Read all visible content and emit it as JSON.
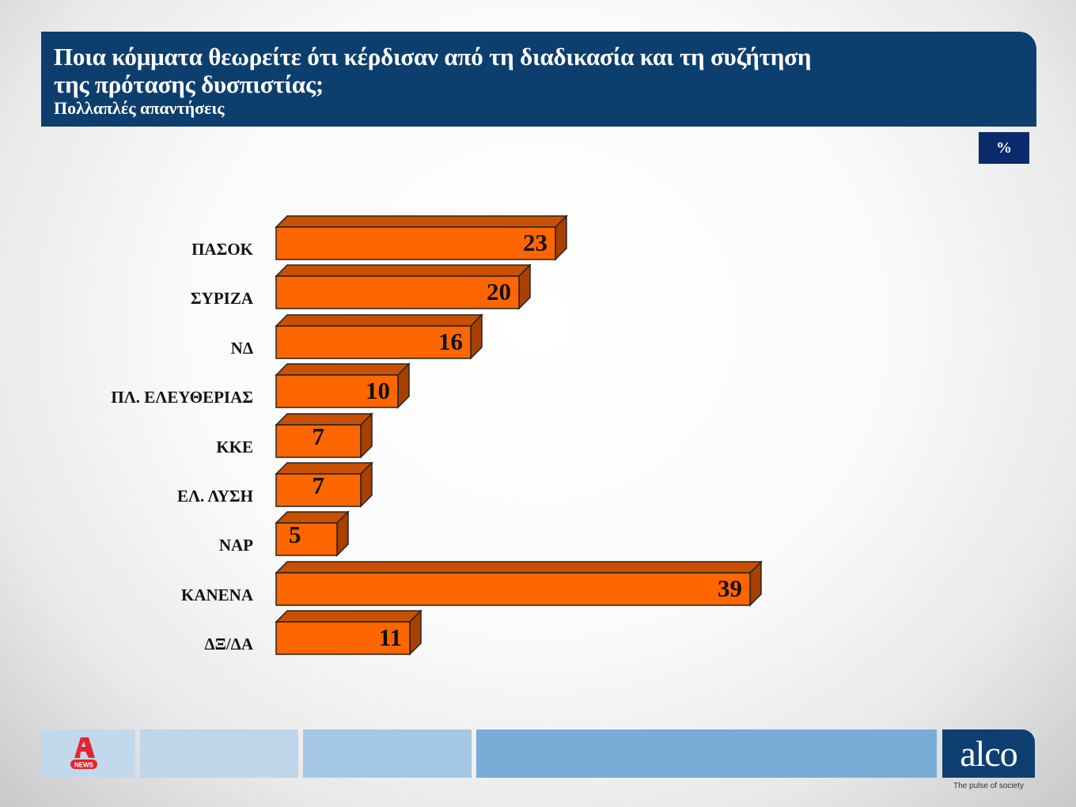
{
  "header": {
    "title_line1": "Ποια κόμματα θεωρείτε ότι κέρδισαν από τη διαδικασία και τη συζήτηση",
    "title_line2": "της πρότασης δυσπιστίας;",
    "subtitle": "Πολλαπλές απαντήσεις"
  },
  "unit_badge": "%",
  "colors": {
    "header_bg": "#0d3f6e",
    "bar_front": "#ff6600",
    "bar_top": "#c85000",
    "bar_side": "#a84000",
    "badge_bg": "#0a2a6b"
  },
  "chart_data": {
    "type": "bar",
    "orientation": "horizontal",
    "style": "3d",
    "title": "Ποια κόμματα θεωρείτε ότι κέρδισαν από τη διαδικασία και τη συζήτηση της πρότασης δυσπιστίας;",
    "subtitle": "Πολλαπλές απαντήσεις",
    "unit": "%",
    "categories": [
      "ΠΑΣΟΚ",
      "ΣΥΡΙΖΑ",
      "ΝΔ",
      "ΠΛ. ΕΛΕΥΘΕΡΙΑΣ",
      "ΚΚΕ",
      "ΕΛ. ΛΥΣΗ",
      "ΝΑΡ",
      "ΚΑΝΕΝΑ",
      "ΔΞ/ΔΑ"
    ],
    "values": [
      23,
      20,
      16,
      10,
      7,
      7,
      5,
      39,
      11
    ],
    "value_labels": [
      "23",
      "20",
      "16",
      "10",
      "7",
      "7",
      "5",
      "39",
      "11"
    ],
    "xlabel": "",
    "ylabel": "",
    "grid": false,
    "legend": null
  },
  "footer": {
    "left_logo": "NEWS",
    "brand": "alco",
    "tagline": "The pulse of society"
  }
}
